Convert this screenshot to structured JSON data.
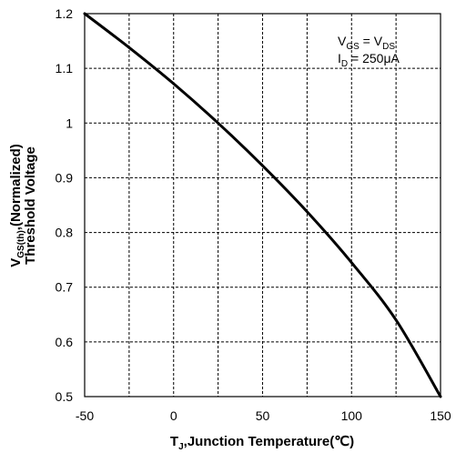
{
  "chart_data": {
    "type": "line",
    "xlabel": {
      "main": "T",
      "sub": "J",
      "rest": ",Junction Temperature(℃)"
    },
    "ylabel": {
      "line1_main": "V",
      "line1_sub": "GS(th)",
      "line1_rest": ",(Normalized)",
      "line2": "Threshold Voltage"
    },
    "xlim": [
      -50,
      150
    ],
    "ylim": [
      0.5,
      1.2
    ],
    "xticks": [
      "-50",
      "0",
      "50",
      "100",
      "150"
    ],
    "xtick_values": [
      -50,
      0,
      50,
      100,
      150
    ],
    "xgrid_values": [
      -50,
      -25,
      0,
      25,
      50,
      75,
      100,
      125,
      150
    ],
    "yticks": [
      "0.5",
      "0.6",
      "0.7",
      "0.8",
      "0.9",
      "1",
      "1.1",
      "1.2"
    ],
    "ytick_values": [
      0.5,
      0.6,
      0.7,
      0.8,
      0.9,
      1.0,
      1.1,
      1.2
    ],
    "grid": true,
    "legend_position": "top-right",
    "annotation": {
      "line1": {
        "a": "V",
        "a_sub": "GS",
        "eq": " = V",
        "b_sub": "DS"
      },
      "line2": {
        "a": "I",
        "a_sub": "D",
        "eq": " = 250μA"
      }
    },
    "series": [
      {
        "x": [
          -50,
          -25,
          0,
          25,
          50,
          75,
          100,
          125,
          150
        ],
        "y": [
          1.2,
          1.138,
          1.072,
          1.0,
          0.922,
          0.838,
          0.745,
          0.64,
          0.5
        ]
      }
    ]
  }
}
